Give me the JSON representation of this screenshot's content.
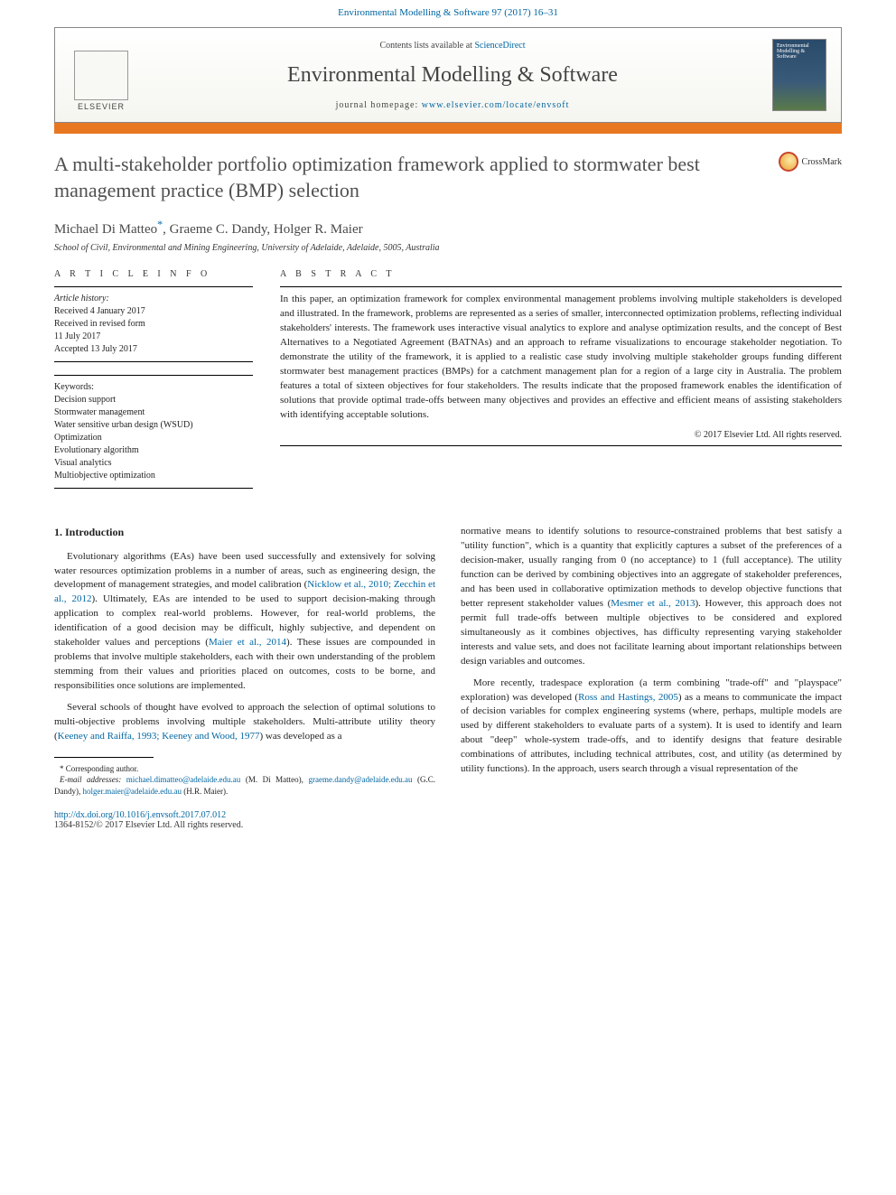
{
  "header": {
    "citation": "Environmental Modelling & Software 97 (2017) 16–31",
    "contents_prefix": "Contents lists available at ",
    "contents_link": "ScienceDirect",
    "journal_name": "Environmental Modelling & Software",
    "homepage_prefix": "journal homepage: ",
    "homepage_url": "www.elsevier.com/locate/envsoft",
    "publisher": "ELSEVIER",
    "thumb_text": "Environmental Modelling & Software"
  },
  "article": {
    "title": "A multi-stakeholder portfolio optimization framework applied to stormwater best management practice (BMP) selection",
    "crossmark": "CrossMark",
    "authors_html": "Michael Di Matteo<sup>*</sup>, Graeme C. Dandy, Holger R. Maier",
    "authors": [
      {
        "name": "Michael Di Matteo",
        "corr": true
      },
      {
        "name": "Graeme C. Dandy",
        "corr": false
      },
      {
        "name": "Holger R. Maier",
        "corr": false
      }
    ],
    "affiliation": "School of Civil, Environmental and Mining Engineering, University of Adelaide, Adelaide, 5005, Australia"
  },
  "info": {
    "head": "A R T I C L E   I N F O",
    "history_label": "Article history:",
    "received": "Received 4 January 2017",
    "revised1": "Received in revised form",
    "revised2": "11 July 2017",
    "accepted": "Accepted 13 July 2017",
    "keywords_label": "Keywords:",
    "keywords": [
      "Decision support",
      "Stormwater management",
      "Water sensitive urban design (WSUD)",
      "Optimization",
      "Evolutionary algorithm",
      "Visual analytics",
      "Multiobjective optimization"
    ]
  },
  "abstract": {
    "head": "A B S T R A C T",
    "text": "In this paper, an optimization framework for complex environmental management problems involving multiple stakeholders is developed and illustrated. In the framework, problems are represented as a series of smaller, interconnected optimization problems, reflecting individual stakeholders' interests. The framework uses interactive visual analytics to explore and analyse optimization results, and the concept of Best Alternatives to a Negotiated Agreement (BATNAs) and an approach to reframe visualizations to encourage stakeholder negotiation. To demonstrate the utility of the framework, it is applied to a realistic case study involving multiple stakeholder groups funding different stormwater best management practices (BMPs) for a catchment management plan for a region of a large city in Australia. The problem features a total of sixteen objectives for four stakeholders. The results indicate that the proposed framework enables the identification of solutions that provide optimal trade-offs between many objectives and provides an effective and efficient means of assisting stakeholders with identifying acceptable solutions.",
    "copyright": "© 2017 Elsevier Ltd. All rights reserved."
  },
  "body": {
    "sec1": "1. Introduction",
    "p1a": "Evolutionary algorithms (EAs) have been used successfully and extensively for solving water resources optimization problems in a number of areas, such as engineering design, the development of management strategies, and model calibration (",
    "p1_ref1": "Nicklow et al., 2010; Zecchin et al., 2012",
    "p1b": "). Ultimately, EAs are intended to be used to support decision-making through application to complex real-world problems. However, for real-world problems, the identification of a good decision may be difficult, highly subjective, and dependent on stakeholder values and perceptions (",
    "p1_ref2": "Maier et al., 2014",
    "p1c": "). These issues are compounded in problems that involve multiple stakeholders, each with their own understanding of the problem stemming from their values and priorities placed on outcomes, costs to be borne, and responsibilities once solutions are implemented.",
    "p2a": "Several schools of thought have evolved to approach the selection of optimal solutions to multi-objective problems involving multiple stakeholders. Multi-attribute utility theory (",
    "p2_ref1": "Keeney and Raiffa, 1993; Keeney and Wood, 1977",
    "p2b": ") was developed as a ",
    "p2c": "normative means to identify solutions to resource-constrained problems that best satisfy a \"utility function\", which is a quantity that explicitly captures a subset of the preferences of a decision-maker, usually ranging from 0 (no acceptance) to 1 (full acceptance). The utility function can be derived by combining objectives into an aggregate of stakeholder preferences, and has been used in collaborative optimization methods to develop objective functions that better represent stakeholder values (",
    "p2_ref2": "Mesmer et al., 2013",
    "p2d": "). However, this approach does not permit full trade-offs between multiple objectives to be considered and explored simultaneously as it combines objectives, has difficulty representing varying stakeholder interests and value sets, and does not facilitate learning about important relationships between design variables and outcomes.",
    "p3a": "More recently, tradespace exploration (a term combining \"trade-off\" and \"playspace\" exploration) was developed (",
    "p3_ref1": "Ross and Hastings, 2005",
    "p3b": ") as a means to communicate the impact of decision variables for complex engineering systems (where, perhaps, multiple models are used by different stakeholders to evaluate parts of a system). It is used to identify and learn about \"deep\" whole-system trade-offs, and to identify designs that feature desirable combinations of attributes, including technical attributes, cost, and utility (as determined by utility functions). In the approach, users search through a visual representation of the "
  },
  "footnote": {
    "corr": "* Corresponding author.",
    "email_label": "E-mail addresses:",
    "e1": "michael.dimatteo@adelaide.edu.au",
    "e1_who": " (M. Di Matteo), ",
    "e2": "graeme.dandy@adelaide.edu.au",
    "e2_who": " (G.C. Dandy), ",
    "e3": "holger.maier@adelaide.edu.au",
    "e3_who": " (H.R. Maier)."
  },
  "footer": {
    "doi": "http://dx.doi.org/10.1016/j.envsoft.2017.07.012",
    "issn": "1364-8152/© 2017 Elsevier Ltd. All rights reserved."
  },
  "colors": {
    "link": "#0066a1",
    "orange": "#e87722",
    "text": "#222"
  }
}
